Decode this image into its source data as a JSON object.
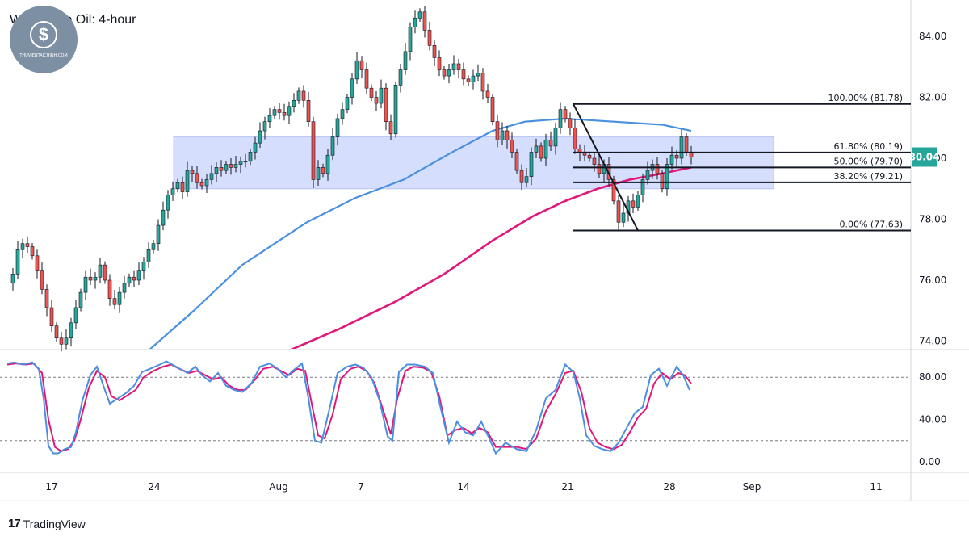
{
  "chart_data": {
    "type": "candlestick",
    "title": "WTI Crude Oil: 4-hour",
    "price_axis": {
      "ylim": [
        73.6,
        85.6
      ],
      "ticks": [
        "84.00",
        "82.00",
        "80.00",
        "78.00",
        "76.00",
        "74.00"
      ],
      "tick_values": [
        84,
        82,
        80,
        78,
        76,
        74
      ]
    },
    "x_axis": {
      "ticks": [
        "17",
        "24",
        "Aug",
        "7",
        "14",
        "21",
        "28",
        "Sep",
        "11"
      ]
    },
    "current_price": {
      "label": "80.04",
      "value": 80.04,
      "color": "#26a69a"
    },
    "zone": {
      "top": 80.7,
      "bottom": 79.0,
      "color": "#d5defc"
    },
    "fibonacci": [
      {
        "label": "100.00% (81.78)",
        "value": 81.78
      },
      {
        "label": "61.80% (80.19)",
        "value": 80.19
      },
      {
        "label": "50.00% (79.70)",
        "value": 79.7
      },
      {
        "label": "38.20% (79.21)",
        "value": 79.21
      },
      {
        "label": "0.00% (77.63)",
        "value": 77.63
      }
    ],
    "trendline": {
      "from": 81.78,
      "to": 77.63
    },
    "price_path": [
      [
        9,
        75.9
      ],
      [
        16,
        76.2
      ],
      [
        22,
        77.0
      ],
      [
        28,
        77.2
      ],
      [
        34,
        77.1
      ],
      [
        40,
        76.8
      ],
      [
        46,
        76.3
      ],
      [
        52,
        75.7
      ],
      [
        58,
        75.1
      ],
      [
        64,
        74.5
      ],
      [
        70,
        74.1
      ],
      [
        76,
        73.9
      ],
      [
        82,
        74.1
      ],
      [
        88,
        74.6
      ],
      [
        94,
        75.1
      ],
      [
        100,
        75.6
      ],
      [
        106,
        76.1
      ],
      [
        112,
        76.0
      ],
      [
        118,
        76.1
      ],
      [
        124,
        76.5
      ],
      [
        130,
        76.0
      ],
      [
        136,
        75.4
      ],
      [
        142,
        75.2
      ],
      [
        148,
        75.6
      ],
      [
        154,
        75.9
      ],
      [
        160,
        76.1
      ],
      [
        166,
        76.0
      ],
      [
        172,
        76.3
      ],
      [
        178,
        76.6
      ],
      [
        184,
        77.0
      ],
      [
        190,
        77.2
      ],
      [
        196,
        77.8
      ],
      [
        202,
        78.3
      ],
      [
        208,
        78.8
      ],
      [
        214,
        79.0
      ],
      [
        220,
        79.2
      ],
      [
        226,
        78.9
      ],
      [
        232,
        79.6
      ],
      [
        238,
        79.5
      ],
      [
        244,
        79.2
      ],
      [
        250,
        79.1
      ],
      [
        256,
        79.3
      ],
      [
        262,
        79.5
      ],
      [
        268,
        79.7
      ],
      [
        274,
        79.6
      ],
      [
        280,
        79.8
      ],
      [
        286,
        79.7
      ],
      [
        292,
        79.8
      ],
      [
        298,
        79.9
      ],
      [
        304,
        79.9
      ],
      [
        310,
        80.2
      ],
      [
        316,
        80.5
      ],
      [
        322,
        80.9
      ],
      [
        328,
        81.2
      ],
      [
        334,
        81.4
      ],
      [
        340,
        81.6
      ],
      [
        346,
        81.5
      ],
      [
        352,
        81.4
      ],
      [
        358,
        81.7
      ],
      [
        364,
        81.9
      ],
      [
        370,
        82.2
      ],
      [
        376,
        81.9
      ],
      [
        382,
        81.2
      ],
      [
        388,
        79.3
      ],
      [
        394,
        79.7
      ],
      [
        400,
        79.5
      ],
      [
        406,
        80.1
      ],
      [
        412,
        80.7
      ],
      [
        418,
        81.3
      ],
      [
        424,
        81.6
      ],
      [
        430,
        82.0
      ],
      [
        436,
        82.6
      ],
      [
        442,
        83.2
      ],
      [
        448,
        82.9
      ],
      [
        454,
        82.3
      ],
      [
        460,
        82.0
      ],
      [
        466,
        81.8
      ],
      [
        472,
        82.3
      ],
      [
        478,
        81.2
      ],
      [
        484,
        80.8
      ],
      [
        490,
        82.4
      ],
      [
        496,
        82.9
      ],
      [
        502,
        83.5
      ],
      [
        508,
        84.3
      ],
      [
        514,
        84.6
      ],
      [
        520,
        84.8
      ],
      [
        526,
        84.2
      ],
      [
        532,
        83.7
      ],
      [
        538,
        83.3
      ],
      [
        544,
        82.9
      ],
      [
        550,
        82.7
      ],
      [
        556,
        82.9
      ],
      [
        562,
        83.1
      ],
      [
        568,
        82.9
      ],
      [
        574,
        82.6
      ],
      [
        580,
        82.5
      ],
      [
        586,
        82.7
      ],
      [
        592,
        82.8
      ],
      [
        598,
        82.2
      ],
      [
        604,
        82.0
      ],
      [
        610,
        81.2
      ],
      [
        616,
        80.6
      ],
      [
        622,
        80.9
      ],
      [
        628,
        80.6
      ],
      [
        634,
        80.2
      ],
      [
        640,
        79.6
      ],
      [
        646,
        79.2
      ],
      [
        652,
        79.4
      ],
      [
        658,
        80.2
      ],
      [
        664,
        80.4
      ],
      [
        670,
        80.0
      ],
      [
        676,
        80.6
      ],
      [
        682,
        80.4
      ],
      [
        688,
        81.0
      ],
      [
        694,
        81.6
      ],
      [
        700,
        81.3
      ],
      [
        706,
        81.0
      ],
      [
        712,
        80.3
      ],
      [
        718,
        80.2
      ],
      [
        724,
        80.1
      ],
      [
        730,
        80.0
      ],
      [
        736,
        79.8
      ],
      [
        742,
        79.5
      ],
      [
        748,
        79.8
      ],
      [
        754,
        79.3
      ],
      [
        760,
        78.6
      ],
      [
        766,
        77.9
      ],
      [
        772,
        78.2
      ],
      [
        778,
        78.6
      ],
      [
        784,
        78.4
      ],
      [
        790,
        78.8
      ],
      [
        796,
        79.3
      ],
      [
        802,
        79.6
      ],
      [
        808,
        79.8
      ],
      [
        814,
        79.5
      ],
      [
        820,
        79.0
      ],
      [
        826,
        79.8
      ],
      [
        832,
        80.1
      ],
      [
        838,
        80.0
      ],
      [
        844,
        80.7
      ],
      [
        850,
        80.2
      ],
      [
        856,
        80.04
      ]
    ],
    "ma_blue": {
      "color": "#4a8fe0",
      "points": [
        [
          180,
          73.6
        ],
        [
          240,
          75.0
        ],
        [
          300,
          76.5
        ],
        [
          380,
          77.9
        ],
        [
          440,
          78.7
        ],
        [
          500,
          79.3
        ],
        [
          560,
          80.2
        ],
        [
          610,
          80.9
        ],
        [
          650,
          81.2
        ],
        [
          700,
          81.3
        ],
        [
          760,
          81.2
        ],
        [
          820,
          81.1
        ],
        [
          856,
          80.9
        ]
      ]
    },
    "ma_pink": {
      "color": "#e0187a",
      "points": [
        [
          350,
          73.6
        ],
        [
          420,
          74.4
        ],
        [
          490,
          75.3
        ],
        [
          550,
          76.2
        ],
        [
          610,
          77.3
        ],
        [
          660,
          78.1
        ],
        [
          700,
          78.6
        ],
        [
          740,
          79.0
        ],
        [
          780,
          79.3
        ],
        [
          820,
          79.5
        ],
        [
          856,
          79.7
        ]
      ]
    },
    "oscillator": {
      "ylim": [
        0,
        100
      ],
      "ticks": [
        "80.00",
        "40.00",
        "0.00"
      ],
      "tick_values": [
        80,
        40,
        0
      ],
      "levels": [
        80,
        20
      ],
      "k_color": "#4a8fe0",
      "d_color": "#e0187a",
      "k": [
        [
          9,
          93
        ],
        [
          18,
          94
        ],
        [
          28,
          92
        ],
        [
          40,
          94
        ],
        [
          48,
          88
        ],
        [
          54,
          60
        ],
        [
          60,
          15
        ],
        [
          66,
          8
        ],
        [
          72,
          8
        ],
        [
          80,
          12
        ],
        [
          88,
          14
        ],
        [
          94,
          28
        ],
        [
          102,
          58
        ],
        [
          112,
          82
        ],
        [
          120,
          90
        ],
        [
          128,
          72
        ],
        [
          136,
          55
        ],
        [
          146,
          60
        ],
        [
          156,
          65
        ],
        [
          166,
          72
        ],
        [
          176,
          85
        ],
        [
          186,
          88
        ],
        [
          198,
          92
        ],
        [
          206,
          95
        ],
        [
          218,
          90
        ],
        [
          232,
          84
        ],
        [
          242,
          90
        ],
        [
          250,
          82
        ],
        [
          260,
          76
        ],
        [
          270,
          84
        ],
        [
          280,
          72
        ],
        [
          290,
          68
        ],
        [
          300,
          66
        ],
        [
          312,
          75
        ],
        [
          322,
          90
        ],
        [
          334,
          93
        ],
        [
          344,
          88
        ],
        [
          354,
          80
        ],
        [
          364,
          87
        ],
        [
          374,
          93
        ],
        [
          382,
          60
        ],
        [
          390,
          20
        ],
        [
          398,
          18
        ],
        [
          408,
          50
        ],
        [
          418,
          84
        ],
        [
          430,
          90
        ],
        [
          440,
          92
        ],
        [
          450,
          89
        ],
        [
          460,
          80
        ],
        [
          470,
          58
        ],
        [
          480,
          24
        ],
        [
          486,
          20
        ],
        [
          494,
          85
        ],
        [
          504,
          92
        ],
        [
          514,
          92
        ],
        [
          526,
          90
        ],
        [
          536,
          84
        ],
        [
          546,
          50
        ],
        [
          556,
          18
        ],
        [
          566,
          38
        ],
        [
          576,
          28
        ],
        [
          586,
          25
        ],
        [
          596,
          38
        ],
        [
          606,
          22
        ],
        [
          614,
          8
        ],
        [
          626,
          18
        ],
        [
          640,
          12
        ],
        [
          652,
          10
        ],
        [
          664,
          30
        ],
        [
          676,
          60
        ],
        [
          688,
          68
        ],
        [
          700,
          92
        ],
        [
          710,
          85
        ],
        [
          718,
          60
        ],
        [
          726,
          25
        ],
        [
          736,
          15
        ],
        [
          746,
          12
        ],
        [
          756,
          10
        ],
        [
          766,
          18
        ],
        [
          776,
          32
        ],
        [
          786,
          46
        ],
        [
          796,
          52
        ],
        [
          806,
          82
        ],
        [
          816,
          88
        ],
        [
          826,
          72
        ],
        [
          838,
          90
        ],
        [
          846,
          82
        ],
        [
          854,
          68
        ]
      ],
      "d": [
        [
          9,
          92
        ],
        [
          20,
          93
        ],
        [
          32,
          92
        ],
        [
          42,
          93
        ],
        [
          52,
          84
        ],
        [
          60,
          40
        ],
        [
          68,
          14
        ],
        [
          76,
          10
        ],
        [
          84,
          12
        ],
        [
          92,
          20
        ],
        [
          100,
          40
        ],
        [
          110,
          70
        ],
        [
          120,
          86
        ],
        [
          130,
          80
        ],
        [
          138,
          62
        ],
        [
          148,
          58
        ],
        [
          158,
          63
        ],
        [
          168,
          68
        ],
        [
          178,
          80
        ],
        [
          190,
          86
        ],
        [
          202,
          90
        ],
        [
          212,
          92
        ],
        [
          222,
          88
        ],
        [
          234,
          84
        ],
        [
          244,
          86
        ],
        [
          254,
          82
        ],
        [
          264,
          78
        ],
        [
          274,
          80
        ],
        [
          284,
          72
        ],
        [
          294,
          68
        ],
        [
          304,
          68
        ],
        [
          316,
          78
        ],
        [
          326,
          88
        ],
        [
          338,
          90
        ],
        [
          348,
          86
        ],
        [
          358,
          82
        ],
        [
          368,
          88
        ],
        [
          378,
          86
        ],
        [
          386,
          55
        ],
        [
          394,
          25
        ],
        [
          402,
          22
        ],
        [
          412,
          45
        ],
        [
          422,
          78
        ],
        [
          434,
          88
        ],
        [
          444,
          90
        ],
        [
          454,
          86
        ],
        [
          464,
          74
        ],
        [
          474,
          50
        ],
        [
          484,
          26
        ],
        [
          492,
          60
        ],
        [
          502,
          86
        ],
        [
          512,
          90
        ],
        [
          524,
          89
        ],
        [
          534,
          85
        ],
        [
          544,
          62
        ],
        [
          554,
          25
        ],
        [
          564,
          30
        ],
        [
          574,
          32
        ],
        [
          584,
          27
        ],
        [
          594,
          32
        ],
        [
          604,
          28
        ],
        [
          614,
          14
        ],
        [
          626,
          14
        ],
        [
          640,
          14
        ],
        [
          652,
          12
        ],
        [
          664,
          22
        ],
        [
          676,
          48
        ],
        [
          688,
          64
        ],
        [
          700,
          84
        ],
        [
          710,
          86
        ],
        [
          720,
          66
        ],
        [
          730,
          32
        ],
        [
          740,
          18
        ],
        [
          750,
          14
        ],
        [
          760,
          12
        ],
        [
          770,
          16
        ],
        [
          780,
          28
        ],
        [
          790,
          42
        ],
        [
          800,
          50
        ],
        [
          810,
          74
        ],
        [
          820,
          84
        ],
        [
          830,
          78
        ],
        [
          840,
          84
        ],
        [
          848,
          82
        ],
        [
          856,
          74
        ]
      ]
    }
  },
  "brand": {
    "name": "TradingView",
    "logo_text": "THUVIENTAICHINH.COM"
  }
}
